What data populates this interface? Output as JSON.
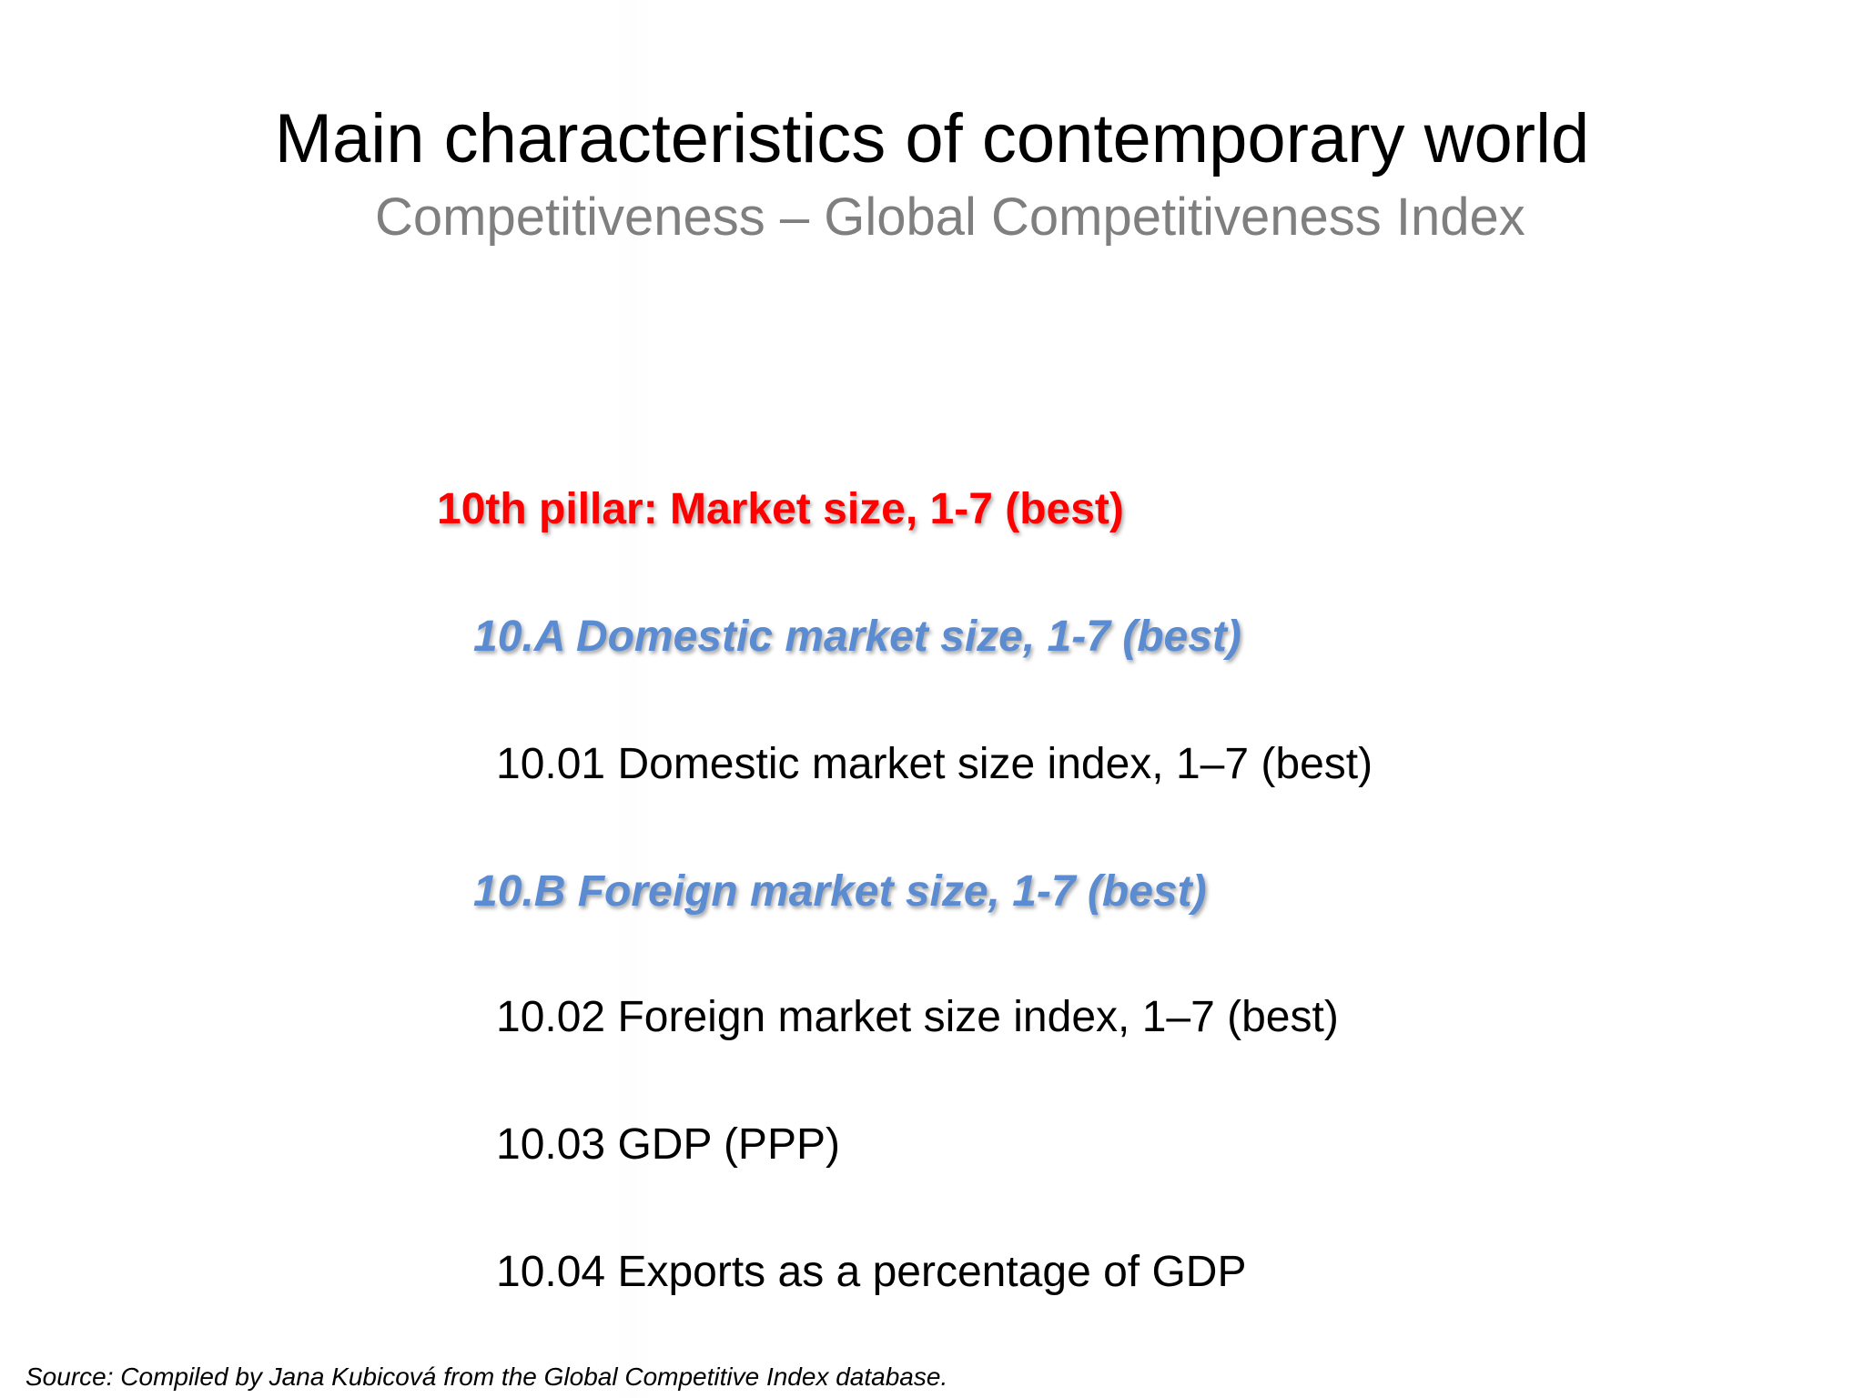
{
  "slide": {
    "title": "Main characteristics of contemporary world",
    "subtitle": "Competitiveness – Global Competitiveness Index",
    "pillar": "10th pillar: Market size, 1-7 (best)",
    "sections": [
      {
        "heading": "10.A Domestic market size, 1-7 (best)",
        "items": [
          "10.01 Domestic market size index, 1–7 (best)"
        ]
      },
      {
        "heading": "10.B Foreign market size, 1-7 (best)",
        "items": [
          "10.02 Foreign market size index, 1–7 (best)",
          "10.03 GDP (PPP)",
          "10.04 Exports as a percentage of GDP"
        ]
      }
    ],
    "source": "Source: Compiled by Jana Kubicová from the Global Competitive Index database."
  },
  "colors": {
    "title": "#000000",
    "subtitle": "#7f7f7f",
    "pillar": "#ff0000",
    "section_heading": "#5b8bd0",
    "item": "#000000"
  }
}
